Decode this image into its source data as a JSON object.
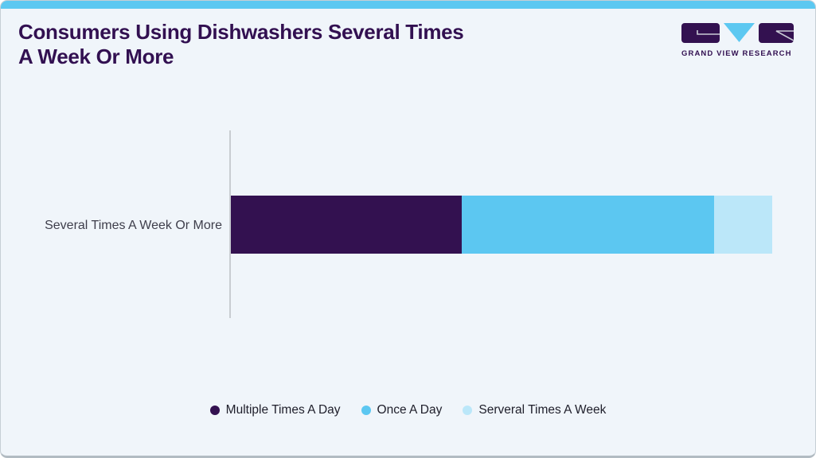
{
  "card": {
    "accent_bar_color": "#5cc8f1",
    "background_color": "#f0f5fa"
  },
  "header": {
    "title_line1": "Consumers Using Dishwashers Several Times",
    "title_line2": "A Week Or More",
    "title_color": "#321051",
    "logo": {
      "text": "GRAND VIEW RESEARCH",
      "box_color": "#331150",
      "triangle_color": "#5cc8f1"
    }
  },
  "chart": {
    "category_label": "Several Times A Week Or More",
    "legend": [
      {
        "label": "Multiple Times A Day",
        "color": "#331150"
      },
      {
        "label": "Once A Day",
        "color": "#5cc7f1"
      },
      {
        "label": "Serveral Times A Week",
        "color": "#bbe7f9"
      }
    ]
  },
  "chart_data": {
    "type": "bar",
    "orientation": "horizontal",
    "stacked": true,
    "title": "Consumers Using Dishwashers Several Times A Week Or More",
    "categories": [
      "Several Times A Week Or More"
    ],
    "series": [
      {
        "name": "Multiple Times A Day",
        "values": [
          42.6
        ],
        "color": "#331150"
      },
      {
        "name": "Once A Day",
        "values": [
          46.7
        ],
        "color": "#5cc7f1"
      },
      {
        "name": "Serveral Times A Week",
        "values": [
          10.7
        ],
        "color": "#bbe7f9"
      }
    ],
    "value_note": "percent share estimated from segment widths; no numeric axis or data labels shown",
    "xlabel": "",
    "ylabel": "",
    "grid": false,
    "legend_position": "bottom"
  }
}
